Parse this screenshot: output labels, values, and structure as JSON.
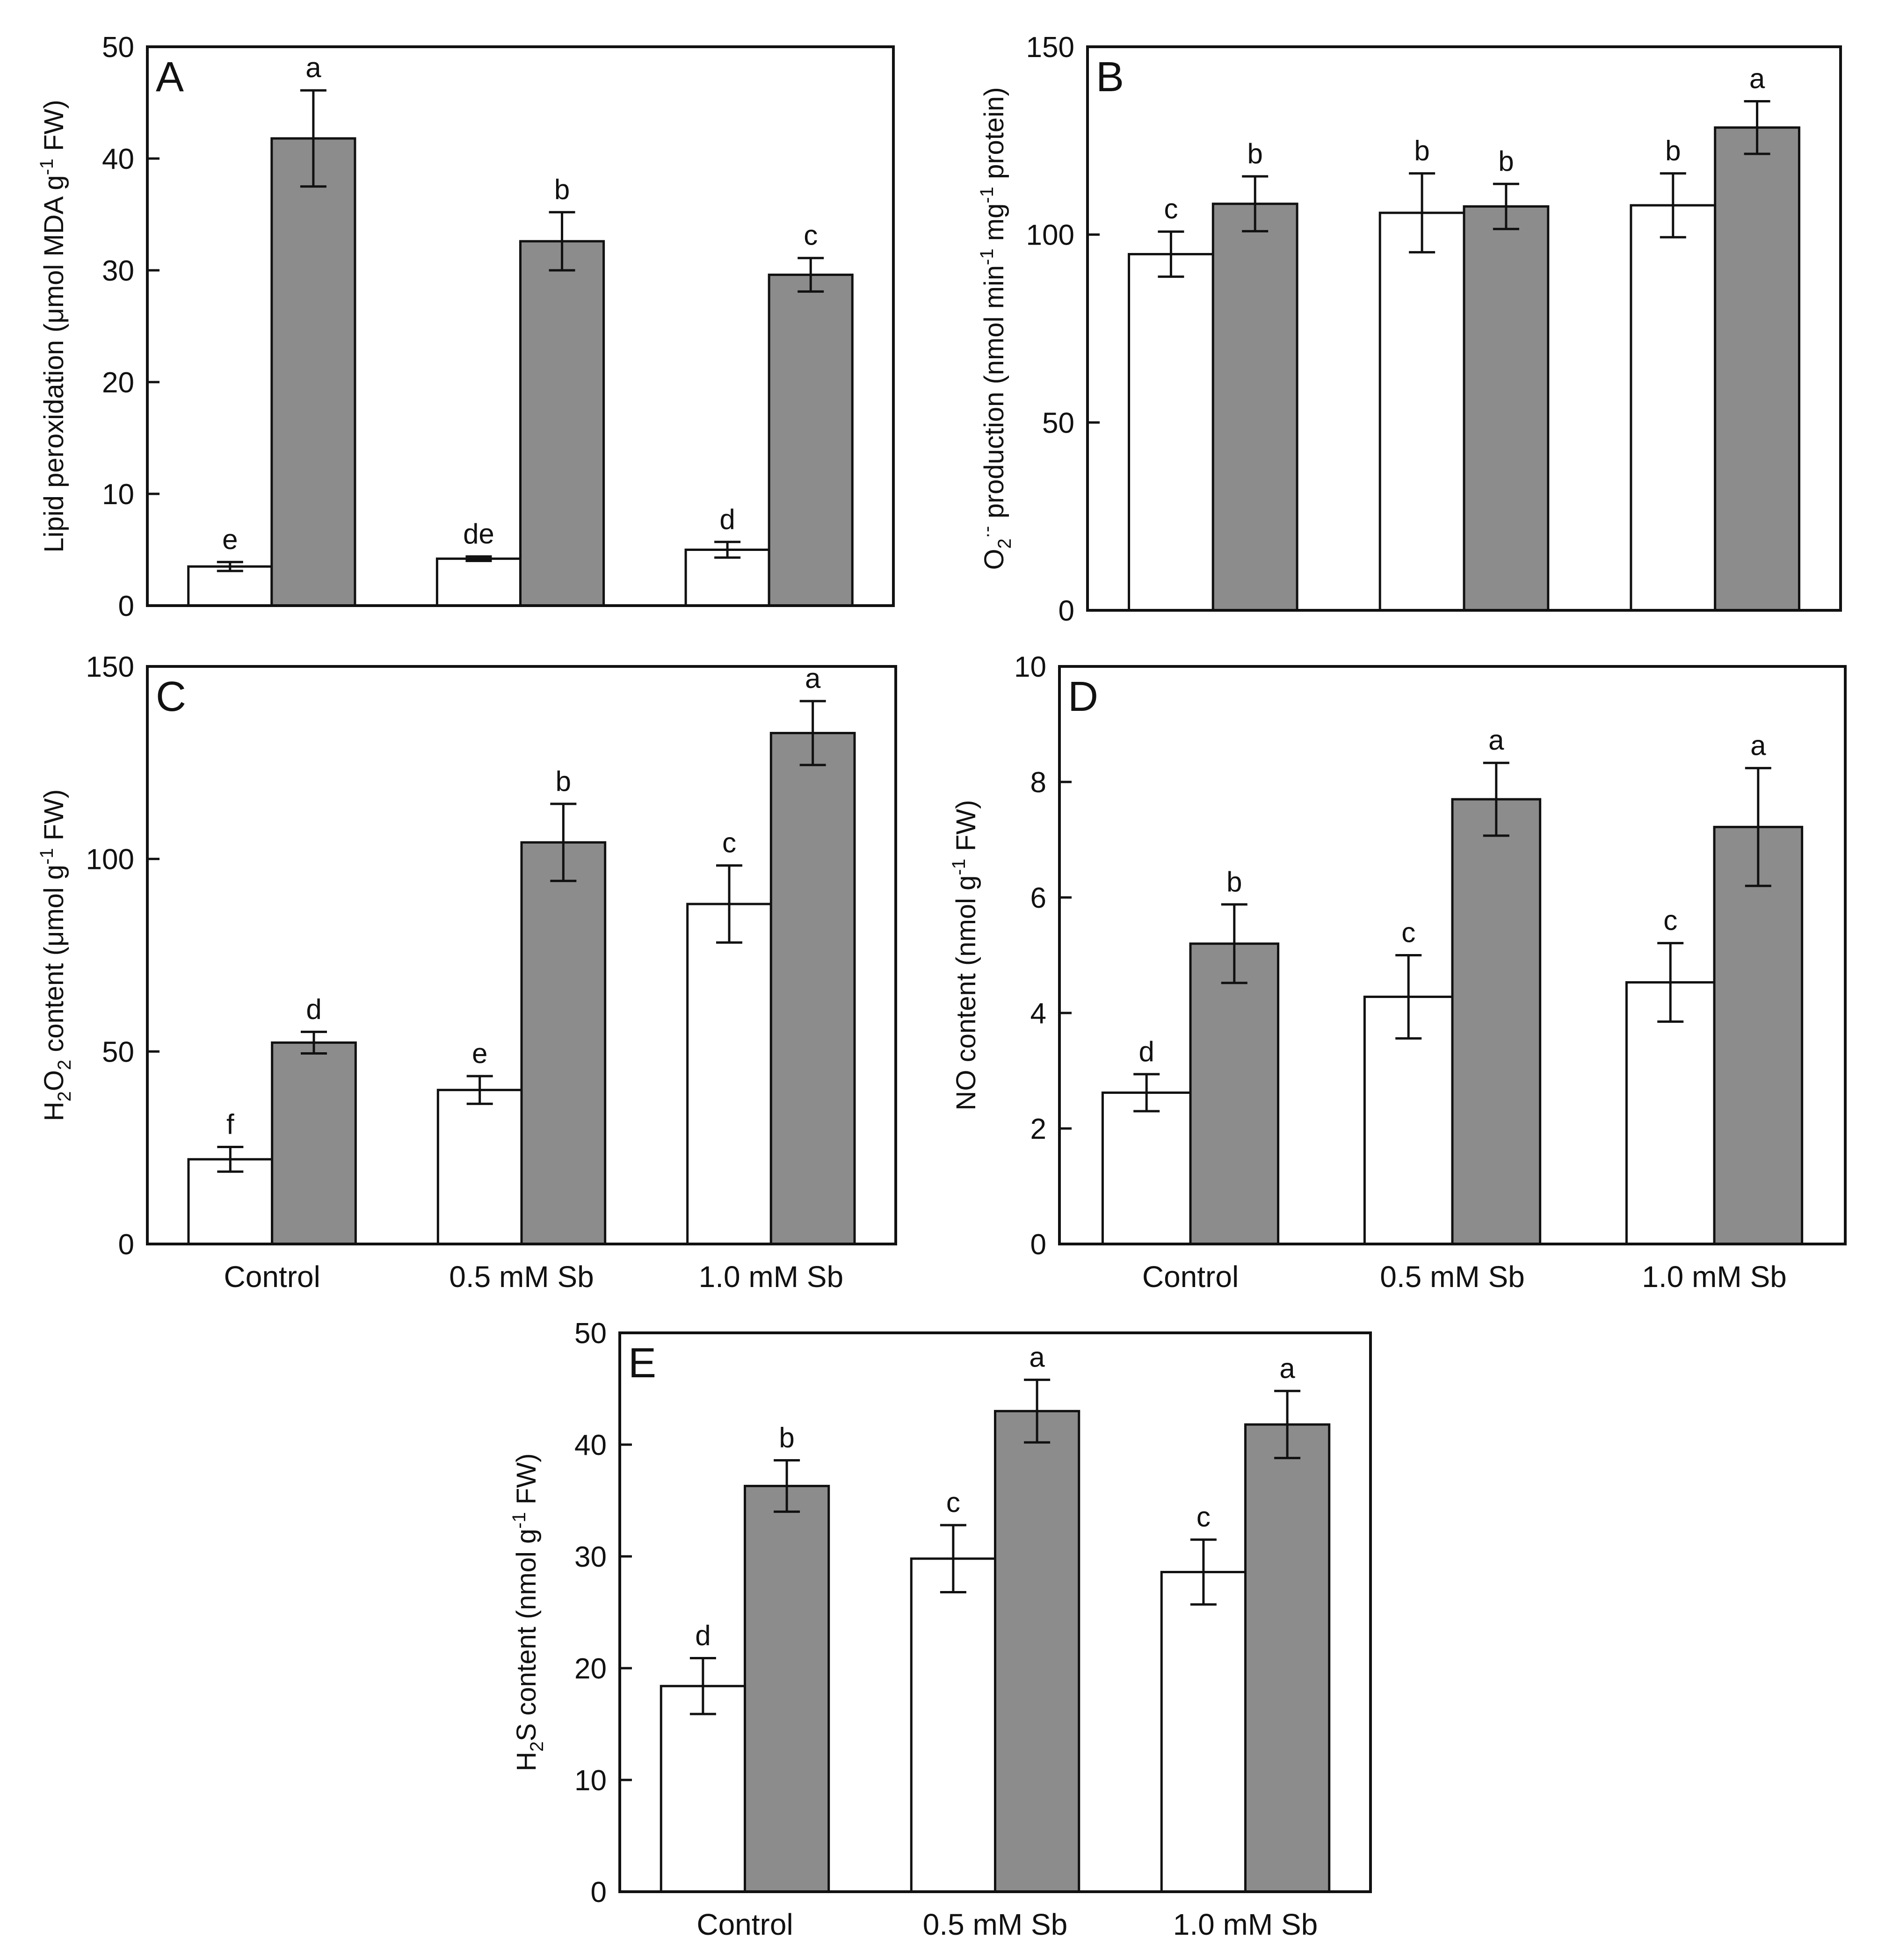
{
  "colors": {
    "series_open": "#ffffff",
    "series_filled": "#8c8c8c",
    "stroke": "#111111"
  },
  "chart_data": [
    {
      "type": "bar",
      "panel": "A",
      "categories": [
        "",
        "",
        ""
      ],
      "ylabel": "Lipid peroxidation (μmol MDA g-1 FW)",
      "ylabel_parts": [
        {
          "text": "Lipid peroxidation (μmol MDA g",
          "baseline": "normal"
        },
        {
          "text": "-1",
          "baseline": "super"
        },
        {
          "text": " FW)",
          "baseline": "normal"
        }
      ],
      "ylim": [
        0,
        50
      ],
      "yticks": [
        0,
        10,
        20,
        30,
        40,
        50
      ],
      "grid": false,
      "legend": "none",
      "series": [
        {
          "values": [
            3.5,
            4.2,
            5.0
          ],
          "errors": [
            0.4,
            0.2,
            0.7
          ],
          "labels": [
            "e",
            "de",
            "d"
          ]
        },
        {
          "values": [
            41.8,
            32.6,
            29.6
          ],
          "errors": [
            4.3,
            2.6,
            1.5
          ],
          "labels": [
            "a",
            "b",
            "c"
          ]
        }
      ]
    },
    {
      "type": "bar",
      "panel": "B",
      "categories": [
        "",
        "",
        ""
      ],
      "ylabel": "O2·- production (nmol min-1 mg-1 protein)",
      "ylabel_parts": [
        {
          "text": "O",
          "baseline": "normal"
        },
        {
          "text": "2",
          "baseline": "sub"
        },
        {
          "text": "·-",
          "baseline": "super"
        },
        {
          "text": " production (nmol  min",
          "baseline": "normal"
        },
        {
          "text": "-1",
          "baseline": "super"
        },
        {
          "text": " mg",
          "baseline": "normal"
        },
        {
          "text": "-1",
          "baseline": "super"
        },
        {
          "text": " protein)",
          "baseline": "normal"
        }
      ],
      "ylim": [
        0,
        150
      ],
      "yticks": [
        0,
        50,
        100,
        150
      ],
      "grid": false,
      "legend": "none",
      "series": [
        {
          "values": [
            94.8,
            105.8,
            107.8
          ],
          "errors": [
            6.0,
            10.5,
            8.5
          ],
          "labels": [
            "c",
            "b",
            "b"
          ]
        },
        {
          "values": [
            108.2,
            107.5,
            128.5
          ],
          "errors": [
            7.3,
            6.0,
            7.0
          ],
          "labels": [
            "b",
            "b",
            "a"
          ]
        }
      ]
    },
    {
      "type": "bar",
      "panel": "C",
      "categories": [
        "Control",
        "0.5 mM Sb",
        "1.0  mM Sb"
      ],
      "ylabel": "H2O2 content (μmol g-1 FW)",
      "ylabel_parts": [
        {
          "text": "H",
          "baseline": "normal"
        },
        {
          "text": "2",
          "baseline": "sub"
        },
        {
          "text": "O",
          "baseline": "normal"
        },
        {
          "text": "2",
          "baseline": "sub"
        },
        {
          "text": " content (μmol  g",
          "baseline": "normal"
        },
        {
          "text": "-1",
          "baseline": "super"
        },
        {
          "text": " FW)",
          "baseline": "normal"
        }
      ],
      "ylim": [
        0,
        150
      ],
      "yticks": [
        0,
        50,
        100,
        150
      ],
      "grid": false,
      "legend": "none",
      "series": [
        {
          "values": [
            22.0,
            40.0,
            88.3
          ],
          "errors": [
            3.2,
            3.6,
            10.0
          ],
          "labels": [
            "f",
            "e",
            "c"
          ]
        },
        {
          "values": [
            52.3,
            104.3,
            132.7
          ],
          "errors": [
            2.8,
            10.0,
            8.3
          ],
          "labels": [
            "d",
            "b",
            "a"
          ]
        }
      ]
    },
    {
      "type": "bar",
      "panel": "D",
      "categories": [
        "Control",
        "0.5 mM Sb",
        "1.0  mM Sb"
      ],
      "ylabel": "NO content (nmol g-1 FW)",
      "ylabel_parts": [
        {
          "text": "NO content (nmol  g",
          "baseline": "normal"
        },
        {
          "text": "-1",
          "baseline": "super"
        },
        {
          "text": " FW)",
          "baseline": "normal"
        }
      ],
      "ylim": [
        0,
        10
      ],
      "yticks": [
        0,
        2,
        4,
        6,
        8,
        10
      ],
      "grid": false,
      "legend": "none",
      "series": [
        {
          "values": [
            2.62,
            4.28,
            4.53
          ],
          "errors": [
            0.32,
            0.72,
            0.68
          ],
          "labels": [
            "d",
            "c",
            "c"
          ]
        },
        {
          "values": [
            5.2,
            7.7,
            7.22
          ],
          "errors": [
            0.68,
            0.63,
            1.02
          ],
          "labels": [
            "b",
            "a",
            "a"
          ]
        }
      ]
    },
    {
      "type": "bar",
      "panel": "E",
      "categories": [
        "Control",
        "0.5 mM Sb",
        "1.0  mM Sb"
      ],
      "ylabel": "H2S content (nmol g-1 FW)",
      "ylabel_parts": [
        {
          "text": "H",
          "baseline": "normal"
        },
        {
          "text": "2",
          "baseline": "sub"
        },
        {
          "text": "S content (nmol  g",
          "baseline": "normal"
        },
        {
          "text": "-1",
          "baseline": "super"
        },
        {
          "text": " FW)",
          "baseline": "normal"
        }
      ],
      "ylim": [
        0,
        50
      ],
      "yticks": [
        0,
        10,
        20,
        30,
        40,
        50
      ],
      "grid": false,
      "legend": "none",
      "series": [
        {
          "values": [
            18.4,
            29.8,
            28.6
          ],
          "errors": [
            2.5,
            3.0,
            2.9
          ],
          "labels": [
            "d",
            "c",
            "c"
          ]
        },
        {
          "values": [
            36.3,
            43.0,
            41.8
          ],
          "errors": [
            2.3,
            2.8,
            3.0
          ],
          "labels": [
            "b",
            "a",
            "a"
          ]
        }
      ]
    }
  ]
}
